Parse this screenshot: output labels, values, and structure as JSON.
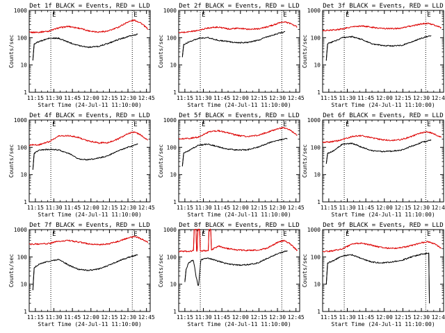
{
  "figure": {
    "panel_titles": [
      "Det 1f BLACK = Events, RED = LLD",
      "Det 2f BLACK = Events, RED = LLD",
      "Det 3f BLACK = Events, RED = LLD",
      "Det 4f BLACK = Events, RED = LLD",
      "Det 5f BLACK = Events, RED = LLD",
      "Det 6f BLACK = Events, RED = LLD",
      "Det 7f BLACK = Events, RED = LLD",
      "Det 8f BLACK = Events, RED = LLD",
      "Det 9f BLACK = Events, RED = LLD"
    ],
    "xlabel": "Start Time (24-Jul-11 11:10:00)",
    "ylabel": "Counts/sec",
    "x_tick_labels": [
      "11:15",
      "11:30",
      "11:45",
      "12:00",
      "12:15",
      "12:30",
      "12:45"
    ],
    "y_tick_labels": [
      "1",
      "10",
      "100",
      "1000"
    ],
    "marker_labels": [
      "E",
      "E"
    ],
    "colors": {
      "events": "#000000",
      "lld": "#dd0000",
      "axes": "#000000"
    }
  },
  "chart_data": {
    "type": "line",
    "layout": "3x3 grid",
    "x_unit": "minutes after 11:10:00 on 24-Jul-11",
    "xlim": [
      0,
      98
    ],
    "ylim": [
      1,
      1000
    ],
    "y_scale": "log",
    "markers": [
      {
        "label": "E",
        "x": 17.5,
        "style": "dotted vertical line"
      },
      {
        "label": "E",
        "x": 83.5,
        "style": "dotted vertical line"
      }
    ],
    "series_legend": {
      "BLACK": "Events",
      "RED": "LLD"
    },
    "panels": [
      {
        "detector": "1f",
        "lld": [
          [
            0,
            155
          ],
          [
            8,
            160
          ],
          [
            16,
            175
          ],
          [
            24,
            230
          ],
          [
            32,
            260
          ],
          [
            40,
            225
          ],
          [
            48,
            180
          ],
          [
            56,
            162
          ],
          [
            64,
            175
          ],
          [
            72,
            240
          ],
          [
            80,
            380
          ],
          [
            85,
            440
          ],
          [
            90,
            360
          ],
          [
            96,
            210
          ]
        ],
        "events": [
          [
            3,
            15
          ],
          [
            4,
            60
          ],
          [
            8,
            72
          ],
          [
            16,
            95
          ],
          [
            24,
            95
          ],
          [
            32,
            68
          ],
          [
            40,
            52
          ],
          [
            48,
            45
          ],
          [
            56,
            48
          ],
          [
            64,
            62
          ],
          [
            72,
            85
          ],
          [
            80,
            110
          ],
          [
            88,
            135
          ]
        ]
      },
      {
        "detector": "2f",
        "lld": [
          [
            0,
            150
          ],
          [
            8,
            165
          ],
          [
            16,
            185
          ],
          [
            24,
            230
          ],
          [
            32,
            245
          ],
          [
            40,
            210
          ],
          [
            48,
            220
          ],
          [
            56,
            205
          ],
          [
            64,
            210
          ],
          [
            72,
            250
          ],
          [
            80,
            330
          ],
          [
            85,
            380
          ],
          [
            90,
            340
          ],
          [
            96,
            250
          ]
        ],
        "events": [
          [
            3,
            20
          ],
          [
            4,
            55
          ],
          [
            8,
            70
          ],
          [
            16,
            95
          ],
          [
            24,
            100
          ],
          [
            32,
            80
          ],
          [
            40,
            72
          ],
          [
            48,
            65
          ],
          [
            56,
            68
          ],
          [
            64,
            80
          ],
          [
            72,
            110
          ],
          [
            80,
            140
          ],
          [
            86,
            165
          ]
        ]
      },
      {
        "detector": "3f",
        "lld": [
          [
            0,
            180
          ],
          [
            8,
            190
          ],
          [
            16,
            210
          ],
          [
            24,
            250
          ],
          [
            32,
            270
          ],
          [
            40,
            240
          ],
          [
            48,
            220
          ],
          [
            56,
            215
          ],
          [
            64,
            225
          ],
          [
            72,
            270
          ],
          [
            80,
            320
          ],
          [
            85,
            340
          ],
          [
            90,
            300
          ],
          [
            96,
            230
          ]
        ],
        "events": [
          [
            3,
            15
          ],
          [
            4,
            60
          ],
          [
            8,
            70
          ],
          [
            16,
            100
          ],
          [
            24,
            110
          ],
          [
            32,
            85
          ],
          [
            40,
            60
          ],
          [
            48,
            52
          ],
          [
            56,
            50
          ],
          [
            64,
            52
          ],
          [
            72,
            70
          ],
          [
            80,
            95
          ],
          [
            88,
            120
          ]
        ]
      },
      {
        "detector": "4f",
        "lld": [
          [
            0,
            120
          ],
          [
            8,
            125
          ],
          [
            16,
            160
          ],
          [
            24,
            260
          ],
          [
            32,
            270
          ],
          [
            40,
            230
          ],
          [
            48,
            170
          ],
          [
            56,
            145
          ],
          [
            64,
            150
          ],
          [
            72,
            200
          ],
          [
            80,
            320
          ],
          [
            85,
            370
          ],
          [
            90,
            290
          ],
          [
            96,
            180
          ]
        ],
        "events": [
          [
            3,
            15
          ],
          [
            4,
            60
          ],
          [
            8,
            80
          ],
          [
            16,
            85
          ],
          [
            24,
            80
          ],
          [
            32,
            60
          ],
          [
            40,
            38
          ],
          [
            48,
            35
          ],
          [
            56,
            40
          ],
          [
            64,
            50
          ],
          [
            72,
            75
          ],
          [
            80,
            100
          ],
          [
            88,
            130
          ]
        ]
      },
      {
        "detector": "5f",
        "lld": [
          [
            0,
            200
          ],
          [
            8,
            210
          ],
          [
            16,
            240
          ],
          [
            24,
            360
          ],
          [
            32,
            410
          ],
          [
            40,
            340
          ],
          [
            48,
            270
          ],
          [
            56,
            250
          ],
          [
            64,
            270
          ],
          [
            72,
            360
          ],
          [
            80,
            480
          ],
          [
            85,
            520
          ],
          [
            90,
            430
          ],
          [
            96,
            280
          ]
        ],
        "events": [
          [
            3,
            20
          ],
          [
            4,
            60
          ],
          [
            8,
            75
          ],
          [
            16,
            120
          ],
          [
            24,
            130
          ],
          [
            32,
            105
          ],
          [
            40,
            85
          ],
          [
            48,
            80
          ],
          [
            56,
            82
          ],
          [
            64,
            100
          ],
          [
            72,
            140
          ],
          [
            80,
            180
          ],
          [
            88,
            210
          ]
        ]
      },
      {
        "detector": "6f",
        "lld": [
          [
            0,
            150
          ],
          [
            8,
            160
          ],
          [
            16,
            190
          ],
          [
            24,
            250
          ],
          [
            32,
            270
          ],
          [
            40,
            220
          ],
          [
            48,
            190
          ],
          [
            56,
            180
          ],
          [
            64,
            195
          ],
          [
            72,
            250
          ],
          [
            80,
            340
          ],
          [
            85,
            370
          ],
          [
            90,
            320
          ],
          [
            96,
            230
          ]
        ],
        "events": [
          [
            3,
            25
          ],
          [
            4,
            60
          ],
          [
            8,
            70
          ],
          [
            16,
            130
          ],
          [
            24,
            140
          ],
          [
            32,
            100
          ],
          [
            40,
            75
          ],
          [
            48,
            70
          ],
          [
            56,
            72
          ],
          [
            64,
            80
          ],
          [
            72,
            110
          ],
          [
            80,
            150
          ],
          [
            88,
            185
          ]
        ]
      },
      {
        "detector": "7f",
        "lld": [
          [
            0,
            290
          ],
          [
            8,
            300
          ],
          [
            16,
            310
          ],
          [
            24,
            380
          ],
          [
            32,
            400
          ],
          [
            40,
            350
          ],
          [
            48,
            300
          ],
          [
            56,
            280
          ],
          [
            64,
            300
          ],
          [
            72,
            370
          ],
          [
            80,
            500
          ],
          [
            85,
            560
          ],
          [
            90,
            480
          ],
          [
            96,
            350
          ]
        ],
        "events": [
          [
            3,
            6
          ],
          [
            4,
            40
          ],
          [
            8,
            55
          ],
          [
            16,
            70
          ],
          [
            24,
            80
          ],
          [
            32,
            50
          ],
          [
            40,
            35
          ],
          [
            48,
            32
          ],
          [
            56,
            36
          ],
          [
            64,
            48
          ],
          [
            72,
            70
          ],
          [
            80,
            95
          ],
          [
            88,
            120
          ]
        ]
      },
      {
        "detector": "8f",
        "lld": [
          [
            0,
            160
          ],
          [
            8,
            160
          ],
          [
            12,
            170
          ],
          [
            12.5,
            1000
          ],
          [
            14,
            1000
          ],
          [
            14.5,
            165
          ],
          [
            15,
            170
          ],
          [
            15.5,
            1000
          ],
          [
            17,
            1000
          ],
          [
            17.5,
            170
          ],
          [
            24,
            165
          ],
          [
            24.5,
            1000
          ],
          [
            26,
            1000
          ],
          [
            26.5,
            180
          ],
          [
            32,
            250
          ],
          [
            40,
            200
          ],
          [
            48,
            180
          ],
          [
            56,
            175
          ],
          [
            64,
            180
          ],
          [
            72,
            210
          ],
          [
            80,
            340
          ],
          [
            85,
            400
          ],
          [
            90,
            310
          ],
          [
            96,
            170
          ]
        ],
        "events": [
          [
            5,
            12
          ],
          [
            6,
            35
          ],
          [
            8,
            60
          ],
          [
            10,
            70
          ],
          [
            12,
            75
          ],
          [
            14,
            20
          ],
          [
            16,
            8
          ],
          [
            18,
            80
          ],
          [
            24,
            90
          ],
          [
            32,
            70
          ],
          [
            40,
            55
          ],
          [
            48,
            50
          ],
          [
            56,
            52
          ],
          [
            64,
            60
          ],
          [
            72,
            90
          ],
          [
            80,
            130
          ],
          [
            88,
            170
          ]
        ]
      },
      {
        "detector": "9f",
        "lld": [
          [
            0,
            160
          ],
          [
            8,
            165
          ],
          [
            16,
            200
          ],
          [
            24,
            300
          ],
          [
            32,
            320
          ],
          [
            40,
            270
          ],
          [
            48,
            220
          ],
          [
            56,
            205
          ],
          [
            64,
            220
          ],
          [
            72,
            260
          ],
          [
            80,
            330
          ],
          [
            85,
            360
          ],
          [
            90,
            310
          ],
          [
            96,
            210
          ]
        ],
        "events": [
          [
            3,
            10
          ],
          [
            4,
            60
          ],
          [
            8,
            70
          ],
          [
            16,
            110
          ],
          [
            24,
            120
          ],
          [
            32,
            85
          ],
          [
            40,
            65
          ],
          [
            48,
            60
          ],
          [
            56,
            65
          ],
          [
            64,
            75
          ],
          [
            72,
            100
          ],
          [
            80,
            125
          ],
          [
            86,
            140
          ],
          [
            86.5,
            2
          ]
        ]
      }
    ]
  }
}
